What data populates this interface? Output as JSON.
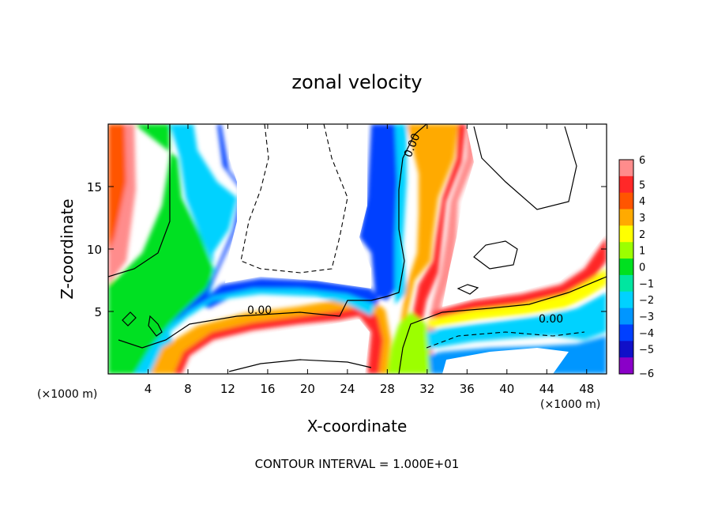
{
  "chart_data": {
    "type": "heatmap",
    "title": "zonal velocity",
    "xlabel": "X-coordinate",
    "ylabel": "Z-coordinate",
    "x_unit": "(×1000 m)",
    "x_unit_right": "(×1000 m)",
    "xlim": [
      0,
      50
    ],
    "ylim": [
      0,
      20
    ],
    "xticks": [
      4,
      8,
      12,
      16,
      20,
      24,
      28,
      32,
      36,
      40,
      44,
      48
    ],
    "yticks": [
      5,
      10,
      15
    ],
    "colorbar": {
      "ticks": [
        6,
        5,
        4,
        3,
        2,
        1,
        0,
        -1,
        -2,
        -3,
        -4,
        -5,
        -6
      ],
      "tick_labels": [
        "6",
        "5",
        "4",
        "3",
        "2",
        "1",
        "0",
        "−1",
        "−2",
        "−3",
        "−4",
        "−5",
        "−6"
      ],
      "colors": [
        "#ff8c8c",
        "#ff2828",
        "#ff5500",
        "#ffaa00",
        "#ffff00",
        "#9cff00",
        "#00e020",
        "#00e6a0",
        "#00d2ff",
        "#0096ff",
        "#0040ff",
        "#1010c8",
        "#8a00c8"
      ]
    },
    "contour_labels": [
      "0.00",
      "0.00",
      "0.00"
    ],
    "footer": "CONTOUR INTERVAL = 1.000E+01"
  }
}
